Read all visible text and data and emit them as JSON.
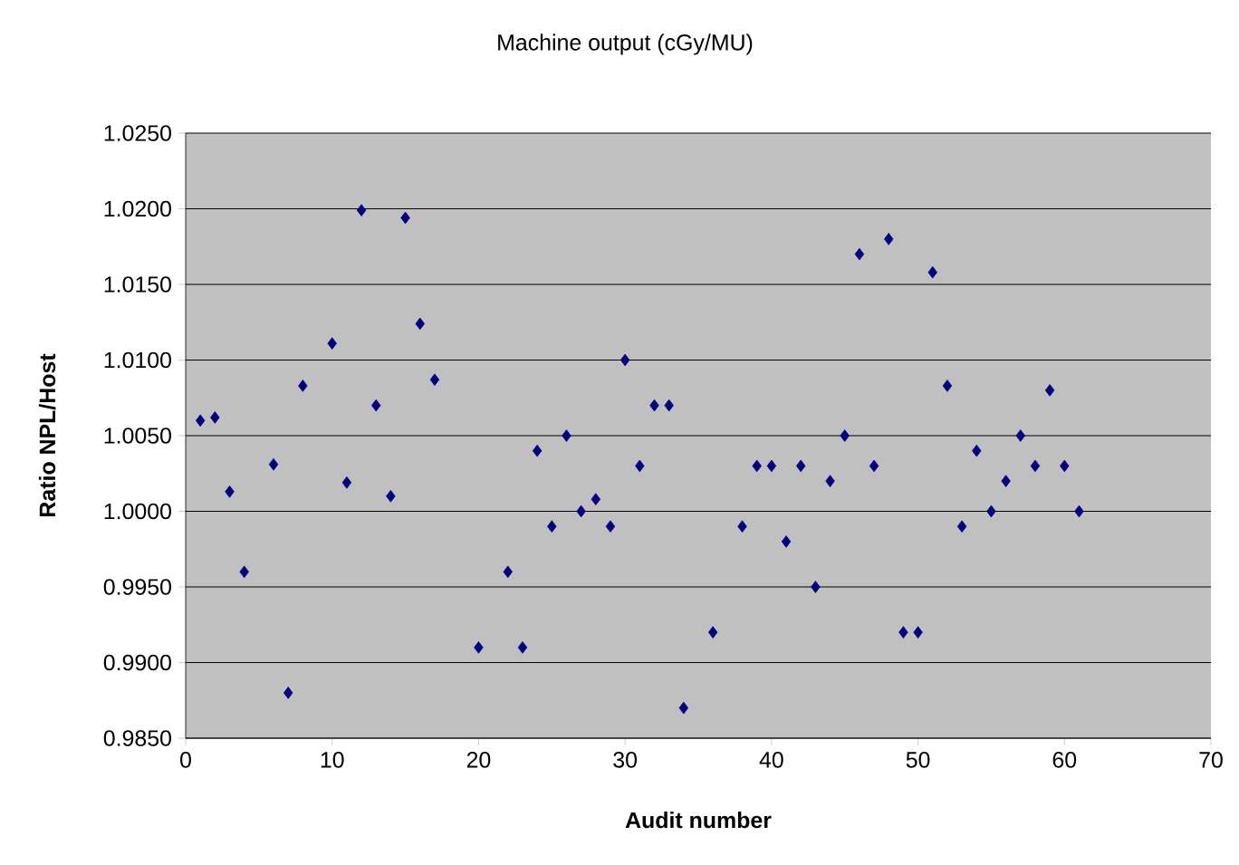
{
  "chart_data": {
    "type": "scatter",
    "title": "Machine output (cGy/MU)",
    "xlabel": "Audit number",
    "ylabel": "Ratio NPL/Host",
    "x": [
      1,
      2,
      3,
      4,
      6,
      7,
      8,
      10,
      11,
      12,
      13,
      14,
      15,
      16,
      17,
      20,
      22,
      23,
      24,
      25,
      26,
      27,
      28,
      29,
      30,
      31,
      32,
      33,
      34,
      36,
      38,
      39,
      40,
      41,
      42,
      43,
      44,
      45,
      46,
      47,
      48,
      49,
      50,
      51,
      52,
      53,
      54,
      55,
      56,
      57,
      58,
      59,
      60,
      61
    ],
    "series": [
      {
        "color": "#000080",
        "values": [
          1.006,
          1.0062,
          1.0013,
          0.996,
          1.0031,
          0.988,
          1.0083,
          1.0111,
          1.0019,
          1.0199,
          1.007,
          1.001,
          1.0194,
          1.0124,
          1.0087,
          0.991,
          0.996,
          0.991,
          1.004,
          0.999,
          1.005,
          1.0,
          1.0008,
          0.999,
          1.01,
          1.003,
          1.007,
          1.007,
          0.987,
          0.992,
          0.999,
          1.003,
          1.003,
          0.998,
          1.003,
          0.995,
          1.002,
          1.005,
          1.017,
          1.003,
          1.018,
          0.992,
          0.992,
          1.0158,
          1.0083,
          0.999,
          1.004,
          1.0,
          1.002,
          1.005,
          1.003,
          1.008,
          1.003,
          1.0
        ]
      }
    ],
    "xlim": [
      0,
      70
    ],
    "xticks": [
      0,
      10,
      20,
      30,
      40,
      50,
      60,
      70
    ],
    "ylim": [
      0.985,
      1.025
    ],
    "yticks": [
      {
        "value": 0.985,
        "label": "0.9850"
      },
      {
        "value": 0.99,
        "label": "0.9900"
      },
      {
        "value": 0.995,
        "label": "0.9950"
      },
      {
        "value": 1.0,
        "label": "1.0000"
      },
      {
        "value": 1.005,
        "label": "1.0050"
      },
      {
        "value": 1.01,
        "label": "1.0100"
      },
      {
        "value": 1.015,
        "label": "1.0150"
      },
      {
        "value": 1.02,
        "label": "1.0200"
      },
      {
        "value": 1.025,
        "label": "1.0250"
      }
    ],
    "grid": "y",
    "marker": "diamond"
  }
}
